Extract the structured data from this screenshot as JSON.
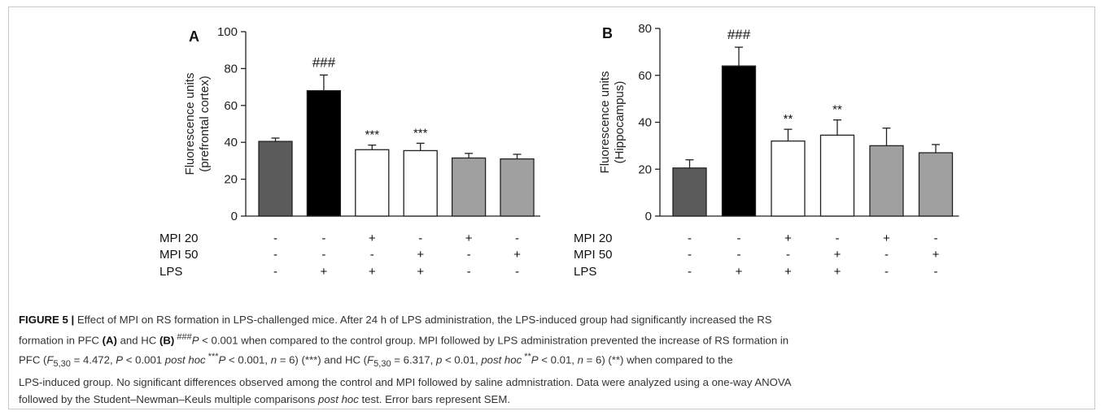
{
  "chart_data": [
    {
      "type": "bar",
      "panel_label": "A",
      "ylabel": "Fluorescence units (prefrontal cortex)",
      "ylabel_lines": [
        "Fluorescence units",
        "(prefrontal cortex)"
      ],
      "ylim": [
        0,
        100
      ],
      "yticks": [
        0,
        20,
        40,
        60,
        80,
        100
      ],
      "values": [
        40.5,
        68,
        36,
        35.5,
        31.5,
        31
      ],
      "errors": [
        1.8,
        8.5,
        2.5,
        4,
        2.5,
        2.5
      ],
      "fills": [
        "#5b5b5b",
        "#000000",
        "#ffffff",
        "#ffffff",
        "#a0a0a0",
        "#a0a0a0"
      ],
      "annotations": [
        "",
        "###",
        "***",
        "***",
        "",
        ""
      ],
      "treatments": {
        "rows": [
          "MPI 20",
          "MPI 50",
          "LPS"
        ],
        "cells": [
          [
            "-",
            "-",
            "+",
            "-",
            "+",
            "-"
          ],
          [
            "-",
            "-",
            "-",
            "+",
            "-",
            "+"
          ],
          [
            "-",
            "+",
            "+",
            "+",
            "-",
            "-"
          ]
        ]
      }
    },
    {
      "type": "bar",
      "panel_label": "B",
      "ylabel": "Fluorescence units (Hippocampus)",
      "ylabel_lines": [
        "Fluorescence units",
        "(Hippocampus)"
      ],
      "ylim": [
        0,
        80
      ],
      "yticks": [
        0,
        20,
        40,
        60,
        80
      ],
      "values": [
        20.5,
        64,
        32,
        34.5,
        30,
        27
      ],
      "errors": [
        3.5,
        8,
        5,
        6.5,
        7.5,
        3.5
      ],
      "fills": [
        "#5b5b5b",
        "#000000",
        "#ffffff",
        "#ffffff",
        "#a0a0a0",
        "#a0a0a0"
      ],
      "annotations": [
        "",
        "###",
        "**",
        "**",
        "",
        ""
      ],
      "treatments": {
        "rows": [
          "MPI 20",
          "MPI 50",
          "LPS"
        ],
        "cells": [
          [
            "-",
            "-",
            "+",
            "-",
            "+",
            "-"
          ],
          [
            "-",
            "-",
            "-",
            "+",
            "-",
            "+"
          ],
          [
            "-",
            "+",
            "+",
            "+",
            "-",
            "-"
          ]
        ]
      }
    }
  ],
  "caption": {
    "figure_label": "FIGURE 5 |",
    "l1": " Effect of MPI on RS formation in LPS-challenged mice. After 24 h of LPS administration, the LPS-induced group had significantly increased the RS",
    "l2a": "formation in PFC ",
    "l2b": "(A)",
    "l2c": " and HC ",
    "l2d": "(B)",
    "l2e": " ###",
    "l2f": "P",
    "l2g": " < 0.001 when compared to the control group. MPI followed by LPS administration prevented the increase of RS formation in",
    "l3a": "PFC (",
    "l3b": "F",
    "l3c": "5,30",
    "l3d": " = 4.472, ",
    "l3e": "P",
    "l3f": " < 0.001 ",
    "l3g": "post hoc",
    "l3h": " ***",
    "l3i": "P",
    "l3j": " < 0.001, ",
    "l3k": "n",
    "l3l": " = 6) (***) and HC (",
    "l3m": "F",
    "l3n": "5,30",
    "l3o": " = 6.317, ",
    "l3p": "p",
    "l3q": " < 0.01, ",
    "l3r": "post hoc",
    "l3s": " **",
    "l3t": "P",
    "l3u": " < 0.01, ",
    "l3v": "n",
    "l3w": " = 6) (**) when compared to the",
    "l4": "LPS-induced group. No significant differences observed among the control and MPI followed by saline admnistration. Data were analyzed using a one-way ANOVA",
    "l5a": "followed by the Student–Newman–Keuls multiple comparisons ",
    "l5b": "post hoc",
    "l5c": " test. Error bars represent SEM."
  }
}
